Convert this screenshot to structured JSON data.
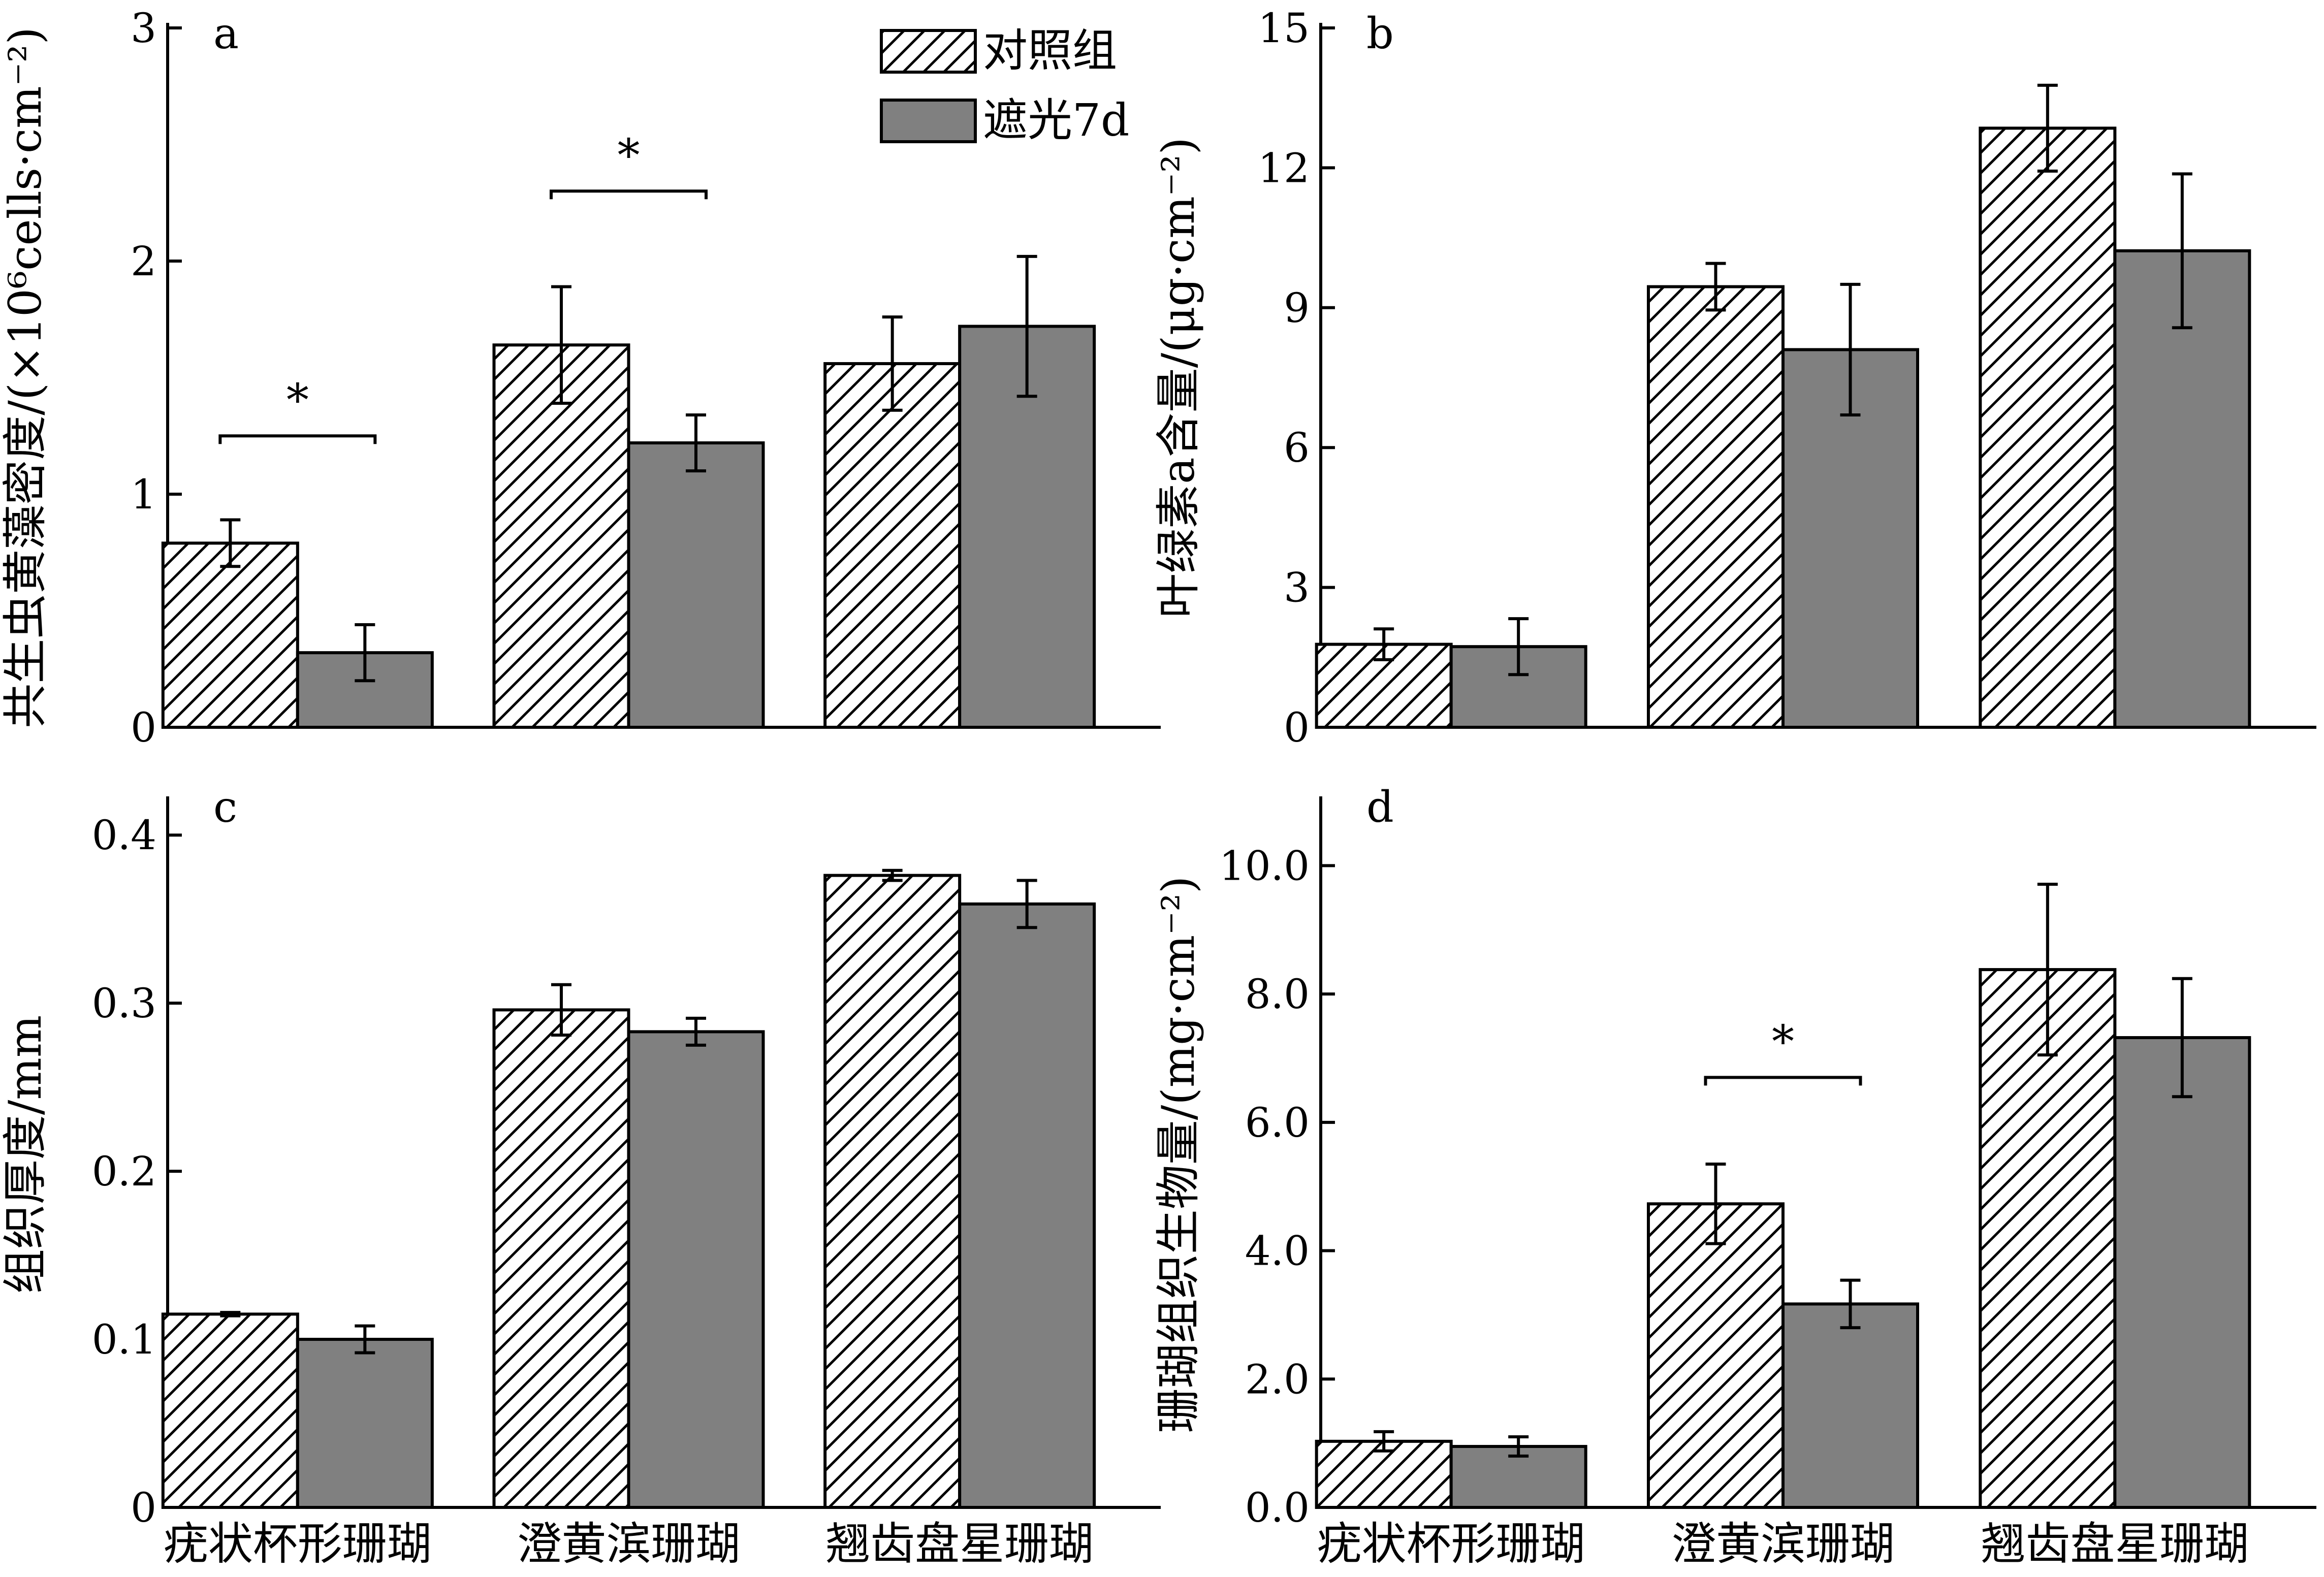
{
  "legend": {
    "control": "对照组",
    "shaded": "遮光7d"
  },
  "colors": {
    "shaded_bar": "#808080",
    "outline": "#000000",
    "background": "#ffffff"
  },
  "chart_data": [
    {
      "id": "a",
      "letter": "a",
      "type": "bar",
      "ylabel": "共生虫黄藻密度/(×10⁶cells·cm⁻²)",
      "ylim": [
        0,
        3
      ],
      "yticks": [
        0,
        1,
        2,
        3
      ],
      "tick_decimals": 0,
      "categories": [
        "疣状杯形珊瑚",
        "澄黄滨珊瑚",
        "翘齿盘星珊瑚"
      ],
      "show_xlabels": false,
      "series": [
        {
          "name": "对照组",
          "values": [
            0.79,
            1.64,
            1.56
          ],
          "errors": [
            0.1,
            0.25,
            0.2
          ]
        },
        {
          "name": "遮光7d",
          "values": [
            0.32,
            1.22,
            1.72
          ],
          "errors": [
            0.12,
            0.12,
            0.3
          ]
        }
      ],
      "significance": [
        {
          "category": 0,
          "label": "*",
          "y": 1.25
        },
        {
          "category": 1,
          "label": "*",
          "y": 2.3
        }
      ],
      "legend_position": "top-right"
    },
    {
      "id": "b",
      "letter": "b",
      "type": "bar",
      "ylabel": "叶绿素a含量/(μg·cm⁻²)",
      "ylim": [
        0,
        15
      ],
      "yticks": [
        0,
        3,
        6,
        9,
        12,
        15
      ],
      "tick_decimals": 0,
      "categories": [
        "疣状杯形珊瑚",
        "澄黄滨珊瑚",
        "翘齿盘星珊瑚"
      ],
      "show_xlabels": false,
      "series": [
        {
          "name": "对照组",
          "values": [
            1.78,
            9.45,
            12.85
          ],
          "errors": [
            0.33,
            0.5,
            0.92
          ]
        },
        {
          "name": "遮光7d",
          "values": [
            1.73,
            8.1,
            10.22
          ],
          "errors": [
            0.6,
            1.4,
            1.65
          ]
        }
      ],
      "significance": []
    },
    {
      "id": "c",
      "letter": "c",
      "type": "bar",
      "ylabel": "组织厚度/mm",
      "ylim": [
        0,
        0.42
      ],
      "yticks": [
        0,
        0.1,
        0.2,
        0.3,
        0.4
      ],
      "tick_decimals": 1,
      "categories": [
        "疣状杯形珊瑚",
        "澄黄滨珊瑚",
        "翘齿盘星珊瑚"
      ],
      "show_xlabels": true,
      "series": [
        {
          "name": "对照组",
          "values": [
            0.115,
            0.296,
            0.376
          ],
          "errors": [
            0.001,
            0.015,
            0.003
          ]
        },
        {
          "name": "遮光7d",
          "values": [
            0.1,
            0.283,
            0.359
          ],
          "errors": [
            0.008,
            0.008,
            0.014
          ]
        }
      ],
      "significance": []
    },
    {
      "id": "d",
      "letter": "d",
      "type": "bar",
      "ylabel": "珊瑚组织生物量/(mg·cm⁻²)",
      "ylim": [
        0,
        11
      ],
      "yticks": [
        0,
        2,
        4,
        6,
        8,
        10
      ],
      "tick_decimals": 1,
      "tick_decimals_zero": true,
      "categories": [
        "疣状杯形珊瑚",
        "澄黄滨珊瑚",
        "翘齿盘星珊瑚"
      ],
      "show_xlabels": true,
      "series": [
        {
          "name": "对照组",
          "values": [
            1.03,
            4.73,
            8.38
          ],
          "errors": [
            0.15,
            0.62,
            1.33
          ]
        },
        {
          "name": "遮光7d",
          "values": [
            0.95,
            3.17,
            7.32
          ],
          "errors": [
            0.15,
            0.37,
            0.92
          ]
        }
      ],
      "significance": [
        {
          "category": 1,
          "label": "*",
          "y": 6.7
        }
      ]
    }
  ]
}
